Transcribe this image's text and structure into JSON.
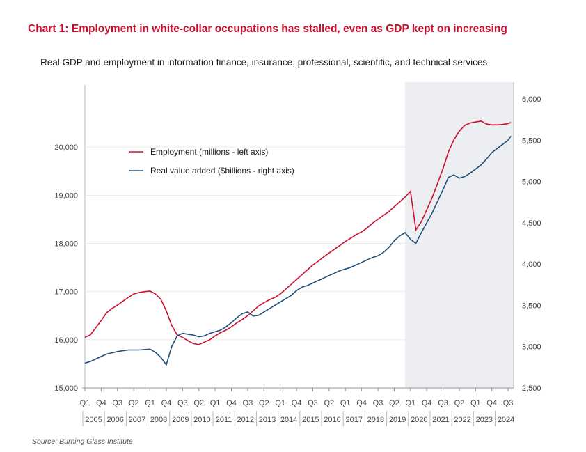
{
  "title": "Chart 1: Employment in white-collar occupations has stalled, even as GDP kept on increasing",
  "subtitle": "Real GDP and employment in information finance, insurance, professional, scientific, and technical services",
  "source": "Source: Burning Glass Institute",
  "colors": {
    "employment": "#c8102e",
    "gdp": "#1f4e79",
    "shade": "#eceef1",
    "title": "#c8102e"
  },
  "chart_data": {
    "type": "line",
    "shaded_period": {
      "from": 2019.75,
      "to": 2024.625
    },
    "x_range": [
      2005.0,
      2024.625
    ],
    "left_axis": {
      "label": "Employment (millions - left axis)",
      "ylim": [
        15000,
        21000
      ],
      "ticks": [
        "15,000",
        "16,000",
        "17,000",
        "18,000",
        "19,000",
        "20,000"
      ],
      "tick_values": [
        15000,
        16000,
        17000,
        18000,
        19000,
        20000
      ]
    },
    "right_axis": {
      "label": "Real value added ($billions - right axis)",
      "ylim": [
        2500,
        6000
      ],
      "ticks": [
        "2,500",
        "3,000",
        "3,500",
        "4,000",
        "4,500",
        "5,000",
        "5,500",
        "6,000"
      ],
      "tick_values": [
        2500,
        3000,
        3500,
        4000,
        4500,
        5000,
        5500,
        6000
      ]
    },
    "quarter_labels": [
      {
        "x": 2005.0,
        "text": "Q1"
      },
      {
        "x": 2005.75,
        "text": "Q4"
      },
      {
        "x": 2006.5,
        "text": "Q3"
      },
      {
        "x": 2007.25,
        "text": "Q2"
      },
      {
        "x": 2008.0,
        "text": "Q1"
      },
      {
        "x": 2008.75,
        "text": "Q4"
      },
      {
        "x": 2009.5,
        "text": "Q3"
      },
      {
        "x": 2010.25,
        "text": "Q2"
      },
      {
        "x": 2011.0,
        "text": "Q1"
      },
      {
        "x": 2011.75,
        "text": "Q4"
      },
      {
        "x": 2012.5,
        "text": "Q3"
      },
      {
        "x": 2013.25,
        "text": "Q2"
      },
      {
        "x": 2014.0,
        "text": "Q1"
      },
      {
        "x": 2014.75,
        "text": "Q4"
      },
      {
        "x": 2015.5,
        "text": "Q3"
      },
      {
        "x": 2016.25,
        "text": "Q2"
      },
      {
        "x": 2017.0,
        "text": "Q1"
      },
      {
        "x": 2017.75,
        "text": "Q4"
      },
      {
        "x": 2018.5,
        "text": "Q3"
      },
      {
        "x": 2019.25,
        "text": "Q2"
      },
      {
        "x": 2020.0,
        "text": "Q1"
      },
      {
        "x": 2020.75,
        "text": "Q4"
      },
      {
        "x": 2021.5,
        "text": "Q3"
      },
      {
        "x": 2022.25,
        "text": "Q2"
      },
      {
        "x": 2023.0,
        "text": "Q1"
      },
      {
        "x": 2023.75,
        "text": "Q4"
      },
      {
        "x": 2024.5,
        "text": "Q3"
      }
    ],
    "year_labels": [
      {
        "x": 2005.0,
        "text": "2005"
      },
      {
        "x": 2006.0,
        "text": "2006"
      },
      {
        "x": 2007.0,
        "text": "2007"
      },
      {
        "x": 2008.0,
        "text": "2008"
      },
      {
        "x": 2009.0,
        "text": "2009"
      },
      {
        "x": 2010.0,
        "text": "2010"
      },
      {
        "x": 2011.0,
        "text": "2011"
      },
      {
        "x": 2012.0,
        "text": "2012"
      },
      {
        "x": 2013.0,
        "text": "2013"
      },
      {
        "x": 2014.0,
        "text": "2014"
      },
      {
        "x": 2015.0,
        "text": "2015"
      },
      {
        "x": 2016.0,
        "text": "2016"
      },
      {
        "x": 2017.0,
        "text": "2017"
      },
      {
        "x": 2018.0,
        "text": "2018"
      },
      {
        "x": 2019.0,
        "text": "2019"
      },
      {
        "x": 2020.0,
        "text": "2020"
      },
      {
        "x": 2021.0,
        "text": "2021"
      },
      {
        "x": 2022.0,
        "text": "2022"
      },
      {
        "x": 2023.0,
        "text": "2023"
      },
      {
        "x": 2024.0,
        "text": "2024"
      }
    ],
    "series": [
      {
        "name": "Employment (millions - left axis)",
        "axis": "left",
        "points": [
          [
            2005.0,
            16050
          ],
          [
            2005.25,
            16100
          ],
          [
            2005.5,
            16250
          ],
          [
            2005.75,
            16400
          ],
          [
            2006.0,
            16560
          ],
          [
            2006.25,
            16650
          ],
          [
            2006.5,
            16720
          ],
          [
            2006.75,
            16800
          ],
          [
            2007.0,
            16880
          ],
          [
            2007.25,
            16950
          ],
          [
            2007.5,
            16980
          ],
          [
            2007.75,
            17000
          ],
          [
            2008.0,
            17010
          ],
          [
            2008.25,
            16950
          ],
          [
            2008.5,
            16840
          ],
          [
            2008.75,
            16600
          ],
          [
            2009.0,
            16300
          ],
          [
            2009.25,
            16100
          ],
          [
            2009.5,
            16050
          ],
          [
            2009.75,
            15980
          ],
          [
            2010.0,
            15920
          ],
          [
            2010.25,
            15900
          ],
          [
            2010.5,
            15950
          ],
          [
            2010.75,
            16000
          ],
          [
            2011.0,
            16080
          ],
          [
            2011.25,
            16150
          ],
          [
            2011.5,
            16200
          ],
          [
            2011.75,
            16270
          ],
          [
            2012.0,
            16350
          ],
          [
            2012.25,
            16420
          ],
          [
            2012.5,
            16500
          ],
          [
            2012.75,
            16600
          ],
          [
            2013.0,
            16700
          ],
          [
            2013.25,
            16770
          ],
          [
            2013.5,
            16830
          ],
          [
            2013.75,
            16880
          ],
          [
            2014.0,
            16950
          ],
          [
            2014.25,
            17050
          ],
          [
            2014.5,
            17150
          ],
          [
            2014.75,
            17250
          ],
          [
            2015.0,
            17350
          ],
          [
            2015.25,
            17450
          ],
          [
            2015.5,
            17550
          ],
          [
            2015.75,
            17630
          ],
          [
            2016.0,
            17720
          ],
          [
            2016.25,
            17800
          ],
          [
            2016.5,
            17880
          ],
          [
            2016.75,
            17960
          ],
          [
            2017.0,
            18040
          ],
          [
            2017.25,
            18110
          ],
          [
            2017.5,
            18180
          ],
          [
            2017.75,
            18240
          ],
          [
            2018.0,
            18320
          ],
          [
            2018.25,
            18420
          ],
          [
            2018.5,
            18500
          ],
          [
            2018.75,
            18580
          ],
          [
            2019.0,
            18660
          ],
          [
            2019.25,
            18760
          ],
          [
            2019.5,
            18860
          ],
          [
            2019.75,
            18960
          ],
          [
            2020.0,
            19080
          ],
          [
            2020.25,
            18280
          ],
          [
            2020.5,
            18450
          ],
          [
            2020.75,
            18700
          ],
          [
            2021.0,
            18950
          ],
          [
            2021.25,
            19250
          ],
          [
            2021.5,
            19550
          ],
          [
            2021.75,
            19900
          ],
          [
            2022.0,
            20150
          ],
          [
            2022.25,
            20330
          ],
          [
            2022.5,
            20450
          ],
          [
            2022.75,
            20500
          ],
          [
            2023.0,
            20520
          ],
          [
            2023.25,
            20540
          ],
          [
            2023.5,
            20480
          ],
          [
            2023.75,
            20460
          ],
          [
            2024.0,
            20460
          ],
          [
            2024.25,
            20470
          ],
          [
            2024.5,
            20490
          ],
          [
            2024.625,
            20510
          ]
        ]
      },
      {
        "name": "Real value added ($billions - right axis)",
        "axis": "right",
        "points": [
          [
            2005.0,
            2800
          ],
          [
            2005.25,
            2820
          ],
          [
            2005.5,
            2850
          ],
          [
            2005.75,
            2880
          ],
          [
            2006.0,
            2910
          ],
          [
            2006.25,
            2925
          ],
          [
            2006.5,
            2940
          ],
          [
            2006.75,
            2950
          ],
          [
            2007.0,
            2960
          ],
          [
            2007.25,
            2960
          ],
          [
            2007.5,
            2960
          ],
          [
            2007.75,
            2965
          ],
          [
            2008.0,
            2970
          ],
          [
            2008.25,
            2930
          ],
          [
            2008.5,
            2870
          ],
          [
            2008.75,
            2780
          ],
          [
            2009.0,
            3000
          ],
          [
            2009.25,
            3130
          ],
          [
            2009.5,
            3160
          ],
          [
            2009.75,
            3150
          ],
          [
            2010.0,
            3140
          ],
          [
            2010.25,
            3120
          ],
          [
            2010.5,
            3130
          ],
          [
            2010.75,
            3160
          ],
          [
            2011.0,
            3180
          ],
          [
            2011.25,
            3200
          ],
          [
            2011.5,
            3240
          ],
          [
            2011.75,
            3290
          ],
          [
            2012.0,
            3350
          ],
          [
            2012.25,
            3400
          ],
          [
            2012.5,
            3420
          ],
          [
            2012.75,
            3370
          ],
          [
            2013.0,
            3380
          ],
          [
            2013.25,
            3420
          ],
          [
            2013.5,
            3460
          ],
          [
            2013.75,
            3500
          ],
          [
            2014.0,
            3540
          ],
          [
            2014.25,
            3580
          ],
          [
            2014.5,
            3620
          ],
          [
            2014.75,
            3680
          ],
          [
            2015.0,
            3720
          ],
          [
            2015.25,
            3740
          ],
          [
            2015.5,
            3770
          ],
          [
            2015.75,
            3800
          ],
          [
            2016.0,
            3830
          ],
          [
            2016.25,
            3860
          ],
          [
            2016.5,
            3890
          ],
          [
            2016.75,
            3920
          ],
          [
            2017.0,
            3940
          ],
          [
            2017.25,
            3960
          ],
          [
            2017.5,
            3990
          ],
          [
            2017.75,
            4020
          ],
          [
            2018.0,
            4050
          ],
          [
            2018.25,
            4080
          ],
          [
            2018.5,
            4100
          ],
          [
            2018.75,
            4140
          ],
          [
            2019.0,
            4200
          ],
          [
            2019.25,
            4280
          ],
          [
            2019.5,
            4340
          ],
          [
            2019.75,
            4380
          ],
          [
            2020.0,
            4300
          ],
          [
            2020.25,
            4250
          ],
          [
            2020.5,
            4380
          ],
          [
            2020.75,
            4500
          ],
          [
            2021.0,
            4620
          ],
          [
            2021.25,
            4760
          ],
          [
            2021.5,
            4900
          ],
          [
            2021.75,
            5050
          ],
          [
            2022.0,
            5080
          ],
          [
            2022.25,
            5040
          ],
          [
            2022.5,
            5060
          ],
          [
            2022.75,
            5100
          ],
          [
            2023.0,
            5150
          ],
          [
            2023.25,
            5200
          ],
          [
            2023.5,
            5270
          ],
          [
            2023.75,
            5350
          ],
          [
            2024.0,
            5400
          ],
          [
            2024.25,
            5450
          ],
          [
            2024.5,
            5500
          ],
          [
            2024.625,
            5550
          ]
        ]
      }
    ]
  }
}
